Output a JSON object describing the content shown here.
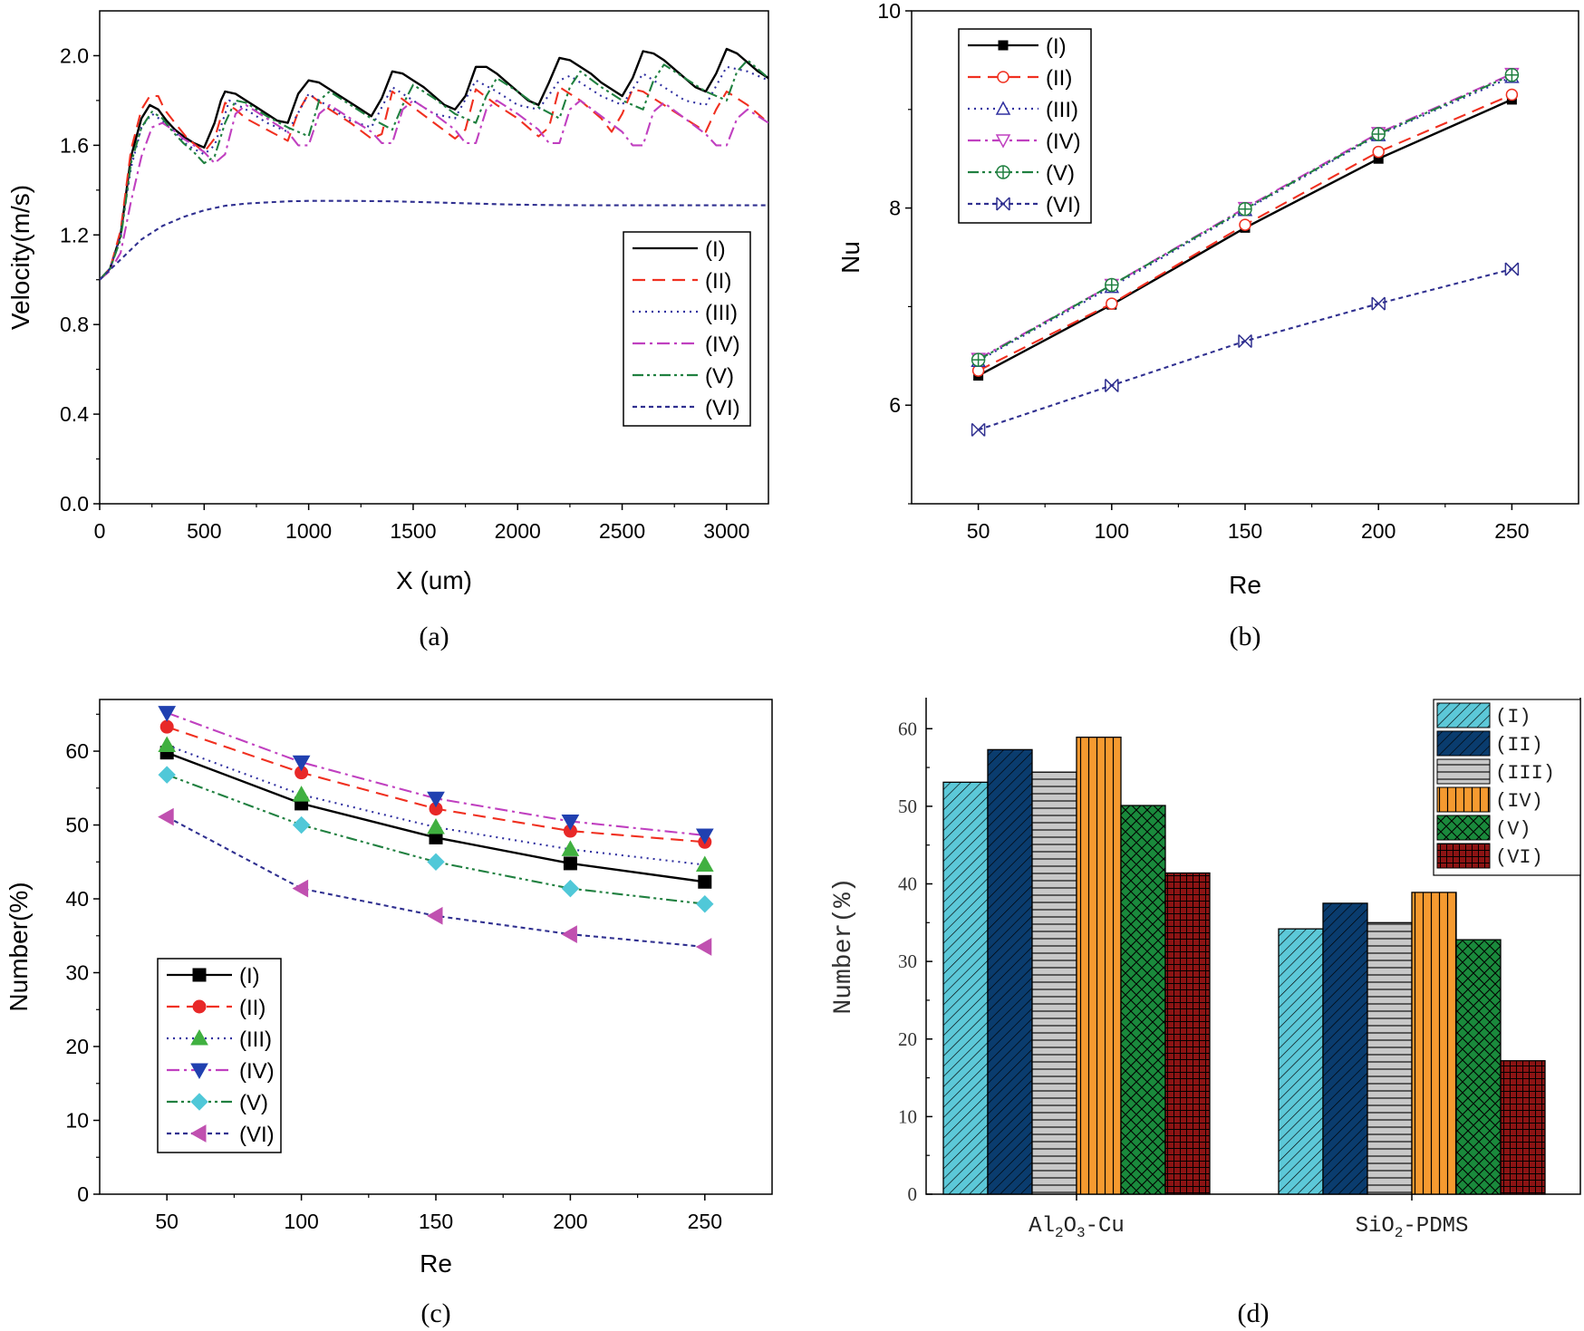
{
  "chart_data": [
    {
      "id": "a",
      "type": "line",
      "caption": "(a)",
      "xlabel": "X (um)",
      "ylabel": "Velocity(m/s)",
      "xlim": [
        0,
        3200
      ],
      "ylim": [
        0.0,
        2.2
      ],
      "xticks": [
        0,
        500,
        1000,
        1500,
        2000,
        2500,
        3000
      ],
      "xtick_labels": [
        "0",
        "500",
        "1000",
        "1500",
        "2000",
        "2500",
        "3000"
      ],
      "yticks": [
        0.0,
        0.4,
        0.8,
        1.2,
        1.6,
        2.0
      ],
      "ytick_labels": [
        "0.0",
        "0.4",
        "0.8",
        "1.2",
        "1.6",
        "2.0"
      ],
      "legend_position": "right-middle",
      "series": [
        {
          "name": "(I)",
          "color": "#000000",
          "dash": "solid",
          "x": [
            0,
            50,
            100,
            150,
            200,
            240,
            280,
            320,
            360,
            400,
            450,
            500,
            550,
            580,
            600,
            650,
            700,
            750,
            800,
            850,
            900,
            950,
            1000,
            1050,
            1100,
            1150,
            1200,
            1250,
            1300,
            1350,
            1400,
            1450,
            1500,
            1550,
            1600,
            1650,
            1700,
            1750,
            1800,
            1850,
            1900,
            1950,
            2000,
            2050,
            2100,
            2150,
            2200,
            2250,
            2300,
            2350,
            2400,
            2450,
            2500,
            2550,
            2600,
            2650,
            2700,
            2750,
            2800,
            2850,
            2900,
            2950,
            3000,
            3050,
            3100,
            3150,
            3200
          ],
          "y": [
            1.0,
            1.05,
            1.2,
            1.55,
            1.72,
            1.78,
            1.76,
            1.71,
            1.67,
            1.64,
            1.61,
            1.59,
            1.7,
            1.8,
            1.84,
            1.83,
            1.8,
            1.77,
            1.74,
            1.71,
            1.7,
            1.83,
            1.89,
            1.88,
            1.85,
            1.82,
            1.79,
            1.76,
            1.73,
            1.81,
            1.93,
            1.92,
            1.89,
            1.86,
            1.82,
            1.78,
            1.76,
            1.82,
            1.95,
            1.95,
            1.92,
            1.88,
            1.84,
            1.8,
            1.78,
            1.88,
            1.99,
            1.98,
            1.95,
            1.92,
            1.88,
            1.85,
            1.82,
            1.9,
            2.02,
            2.01,
            1.98,
            1.94,
            1.9,
            1.86,
            1.84,
            1.92,
            2.03,
            2.01,
            1.97,
            1.93,
            1.9
          ]
        },
        {
          "name": "(II)",
          "color": "#f03020",
          "dash": "dashed",
          "x": [
            0,
            50,
            100,
            150,
            200,
            240,
            280,
            310,
            360,
            420,
            500,
            550,
            600,
            650,
            700,
            800,
            900,
            950,
            1000,
            1100,
            1200,
            1300,
            1350,
            1400,
            1500,
            1600,
            1700,
            1750,
            1800,
            1900,
            2000,
            2100,
            2150,
            2200,
            2300,
            2400,
            2450,
            2500,
            2550,
            2600,
            2700,
            2800,
            2900,
            2950,
            3000,
            3100,
            3200
          ],
          "y": [
            1.0,
            1.05,
            1.22,
            1.58,
            1.76,
            1.82,
            1.82,
            1.76,
            1.7,
            1.63,
            1.57,
            1.63,
            1.79,
            1.76,
            1.72,
            1.67,
            1.62,
            1.75,
            1.83,
            1.76,
            1.7,
            1.63,
            1.65,
            1.84,
            1.77,
            1.7,
            1.63,
            1.67,
            1.85,
            1.78,
            1.72,
            1.64,
            1.68,
            1.86,
            1.8,
            1.72,
            1.66,
            1.74,
            1.85,
            1.84,
            1.78,
            1.72,
            1.66,
            1.76,
            1.84,
            1.78,
            1.7
          ]
        },
        {
          "name": "(III)",
          "color": "#3030a0",
          "dash": "dotted",
          "x": [
            0,
            50,
            100,
            150,
            200,
            250,
            300,
            360,
            420,
            500,
            550,
            600,
            620,
            700,
            800,
            900,
            1000,
            1100,
            1200,
            1300,
            1400,
            1500,
            1600,
            1700,
            1800,
            1900,
            2000,
            2100,
            2200,
            2250,
            2300,
            2400,
            2500,
            2600,
            2700,
            2800,
            2900,
            3000,
            3100,
            3200
          ],
          "y": [
            1.0,
            1.05,
            1.2,
            1.5,
            1.68,
            1.74,
            1.71,
            1.66,
            1.6,
            1.56,
            1.6,
            1.74,
            1.8,
            1.76,
            1.7,
            1.66,
            1.83,
            1.77,
            1.71,
            1.68,
            1.86,
            1.8,
            1.74,
            1.72,
            1.89,
            1.84,
            1.78,
            1.76,
            1.89,
            1.91,
            1.88,
            1.82,
            1.78,
            1.92,
            1.86,
            1.8,
            1.78,
            1.95,
            1.93,
            1.89
          ]
        },
        {
          "name": "(IV)",
          "color": "#c040c0",
          "dash": "dashdot",
          "x": [
            0,
            50,
            100,
            150,
            200,
            250,
            300,
            350,
            400,
            450,
            500,
            550,
            600,
            650,
            700,
            800,
            900,
            950,
            1000,
            1050,
            1100,
            1200,
            1300,
            1350,
            1400,
            1450,
            1500,
            1600,
            1700,
            1750,
            1800,
            1850,
            1900,
            2000,
            2100,
            2150,
            2200,
            2250,
            2300,
            2400,
            2500,
            2550,
            2600,
            2650,
            2700,
            2800,
            2900,
            2950,
            3000,
            3050,
            3100,
            3150,
            3200
          ],
          "y": [
            1.0,
            1.04,
            1.12,
            1.35,
            1.55,
            1.68,
            1.7,
            1.67,
            1.63,
            1.6,
            1.57,
            1.52,
            1.56,
            1.74,
            1.78,
            1.72,
            1.66,
            1.6,
            1.6,
            1.74,
            1.78,
            1.72,
            1.66,
            1.61,
            1.61,
            1.76,
            1.8,
            1.74,
            1.67,
            1.61,
            1.61,
            1.76,
            1.8,
            1.74,
            1.67,
            1.61,
            1.61,
            1.76,
            1.8,
            1.73,
            1.66,
            1.6,
            1.6,
            1.75,
            1.79,
            1.72,
            1.65,
            1.6,
            1.6,
            1.72,
            1.76,
            1.73,
            1.7
          ]
        },
        {
          "name": "(V)",
          "color": "#208040",
          "dash": "dashdotdot",
          "x": [
            0,
            50,
            100,
            150,
            200,
            250,
            300,
            350,
            400,
            450,
            500,
            550,
            600,
            650,
            700,
            800,
            900,
            1000,
            1050,
            1100,
            1200,
            1300,
            1400,
            1450,
            1500,
            1600,
            1700,
            1800,
            1850,
            1900,
            2000,
            2100,
            2200,
            2250,
            2300,
            2400,
            2500,
            2600,
            2650,
            2700,
            2800,
            2900,
            3000,
            3050,
            3100,
            3200
          ],
          "y": [
            1.0,
            1.05,
            1.18,
            1.52,
            1.68,
            1.75,
            1.72,
            1.66,
            1.61,
            1.57,
            1.52,
            1.55,
            1.7,
            1.8,
            1.79,
            1.73,
            1.68,
            1.64,
            1.8,
            1.84,
            1.78,
            1.72,
            1.67,
            1.78,
            1.87,
            1.81,
            1.74,
            1.7,
            1.82,
            1.9,
            1.84,
            1.77,
            1.72,
            1.86,
            1.93,
            1.86,
            1.8,
            1.76,
            1.89,
            1.96,
            1.9,
            1.84,
            1.8,
            1.93,
            1.98,
            1.9
          ]
        },
        {
          "name": "(VI)",
          "color": "#303090",
          "dash": "shortdash",
          "x": [
            0,
            100,
            200,
            300,
            400,
            500,
            600,
            700,
            800,
            900,
            1000,
            1200,
            1400,
            1600,
            1800,
            2000,
            2200,
            2400,
            2600,
            2800,
            3000,
            3200
          ],
          "y": [
            1.0,
            1.09,
            1.18,
            1.24,
            1.28,
            1.31,
            1.33,
            1.34,
            1.345,
            1.35,
            1.352,
            1.352,
            1.35,
            1.345,
            1.34,
            1.335,
            1.333,
            1.332,
            1.332,
            1.332,
            1.332,
            1.332
          ]
        }
      ]
    },
    {
      "id": "b",
      "type": "line",
      "caption": "(b)",
      "xlabel": "Re",
      "ylabel": "Nu",
      "xlim": [
        25,
        275
      ],
      "ylim": [
        5.0,
        10.0
      ],
      "xticks": [
        50,
        100,
        150,
        200,
        250
      ],
      "xtick_labels": [
        "50",
        "100",
        "150",
        "200",
        "250"
      ],
      "yticks": [
        6,
        8,
        10
      ],
      "ytick_labels": [
        "6",
        "8",
        "10"
      ],
      "x": [
        50,
        100,
        150,
        200,
        250
      ],
      "legend_position": "top-left",
      "series": [
        {
          "name": "(I)",
          "color": "#000000",
          "dash": "solid",
          "marker": "filled-square",
          "values": [
            6.3,
            7.02,
            7.8,
            8.5,
            9.1
          ]
        },
        {
          "name": "(II)",
          "color": "#f03020",
          "dash": "dashed",
          "marker": "open-circle",
          "values": [
            6.35,
            7.03,
            7.83,
            8.57,
            9.15
          ]
        },
        {
          "name": "(III)",
          "color": "#3030a0",
          "dash": "dotted",
          "marker": "open-triangle-up",
          "values": [
            6.45,
            7.2,
            7.98,
            8.74,
            9.33
          ]
        },
        {
          "name": "(IV)",
          "color": "#c040c0",
          "dash": "dashdot",
          "marker": "open-triangle-down",
          "values": [
            6.47,
            7.22,
            8.0,
            8.76,
            9.36
          ]
        },
        {
          "name": "(V)",
          "color": "#208040",
          "dash": "dashdotdot",
          "marker": "circle-plus",
          "values": [
            6.46,
            7.22,
            7.99,
            8.75,
            9.35
          ]
        },
        {
          "name": "(VI)",
          "color": "#303090",
          "dash": "shortdash",
          "marker": "x-square",
          "values": [
            5.75,
            6.2,
            6.65,
            7.03,
            7.38
          ]
        }
      ]
    },
    {
      "id": "c",
      "type": "line",
      "caption": "(c)",
      "xlabel": "Re",
      "ylabel": "Number(%)",
      "xlim": [
        25,
        275
      ],
      "ylim": [
        0,
        67
      ],
      "xticks": [
        50,
        100,
        150,
        200,
        250
      ],
      "xtick_labels": [
        "50",
        "100",
        "150",
        "200",
        "250"
      ],
      "yticks": [
        0,
        10,
        20,
        30,
        40,
        50,
        60
      ],
      "ytick_labels": [
        "0",
        "10",
        "20",
        "30",
        "40",
        "50",
        "60"
      ],
      "x": [
        50,
        100,
        150,
        200,
        250
      ],
      "legend_position": "bottom-left",
      "series": [
        {
          "name": "(I)",
          "color": "#000000",
          "dash": "solid",
          "marker": "square",
          "marker_color": "#000000",
          "values": [
            59.8,
            52.9,
            48.3,
            44.8,
            42.3
          ]
        },
        {
          "name": "(II)",
          "color": "#f03020",
          "dash": "dashed",
          "marker": "circle",
          "marker_color": "#e82828",
          "values": [
            63.3,
            57.1,
            52.2,
            49.2,
            47.7
          ]
        },
        {
          "name": "(III)",
          "color": "#3030a0",
          "dash": "dotted",
          "marker": "triangle-up",
          "marker_color": "#40b040",
          "values": [
            60.8,
            54.1,
            49.7,
            46.7,
            44.6
          ]
        },
        {
          "name": "(IV)",
          "color": "#c040c0",
          "dash": "dashdot",
          "marker": "triangle-down",
          "marker_color": "#2040b0",
          "values": [
            65.2,
            58.5,
            53.6,
            50.5,
            48.6
          ]
        },
        {
          "name": "(V)",
          "color": "#208040",
          "dash": "dashdotdot",
          "marker": "diamond",
          "marker_color": "#50c8d8",
          "values": [
            56.8,
            50.0,
            45.0,
            41.4,
            39.3
          ]
        },
        {
          "name": "(VI)",
          "color": "#303090",
          "dash": "shortdash",
          "marker": "triangle-left",
          "marker_color": "#c050b0",
          "values": [
            51.1,
            41.4,
            37.7,
            35.2,
            33.5
          ]
        }
      ]
    },
    {
      "id": "d",
      "type": "bar",
      "caption": "(d)",
      "xlabel": "",
      "ylabel": "Number(%)",
      "ylim": [
        0,
        64
      ],
      "yticks": [
        0,
        10,
        20,
        30,
        40,
        50,
        60
      ],
      "ytick_labels": [
        "0",
        "10",
        "20",
        "30",
        "40",
        "50",
        "60"
      ],
      "categories": [
        {
          "label": "Al2O3-Cu",
          "parts": [
            "Al",
            "2",
            "O",
            "3",
            "-Cu"
          ]
        },
        {
          "label": "SiO2-PDMS",
          "parts": [
            "SiO",
            "2",
            "-PDMS"
          ]
        }
      ],
      "legend_position": "top-right",
      "series": [
        {
          "name": "(I)",
          "fill": "#5cc8d8",
          "pattern": "diagonal",
          "values": [
            53.1,
            34.2
          ]
        },
        {
          "name": "(II)",
          "fill": "#0a3c6e",
          "pattern": "diagonal",
          "values": [
            57.3,
            37.5
          ]
        },
        {
          "name": "(III)",
          "fill": "#c8c8c8",
          "pattern": "horizontal",
          "values": [
            54.4,
            35.0
          ]
        },
        {
          "name": "(IV)",
          "fill": "#f59a30",
          "pattern": "vertical",
          "values": [
            58.9,
            38.9
          ]
        },
        {
          "name": "(V)",
          "fill": "#1a8a3c",
          "pattern": "crosshatch",
          "values": [
            50.1,
            32.8
          ]
        },
        {
          "name": "(VI)",
          "fill": "#8c1414",
          "pattern": "grid",
          "values": [
            41.4,
            17.2
          ]
        }
      ]
    }
  ]
}
